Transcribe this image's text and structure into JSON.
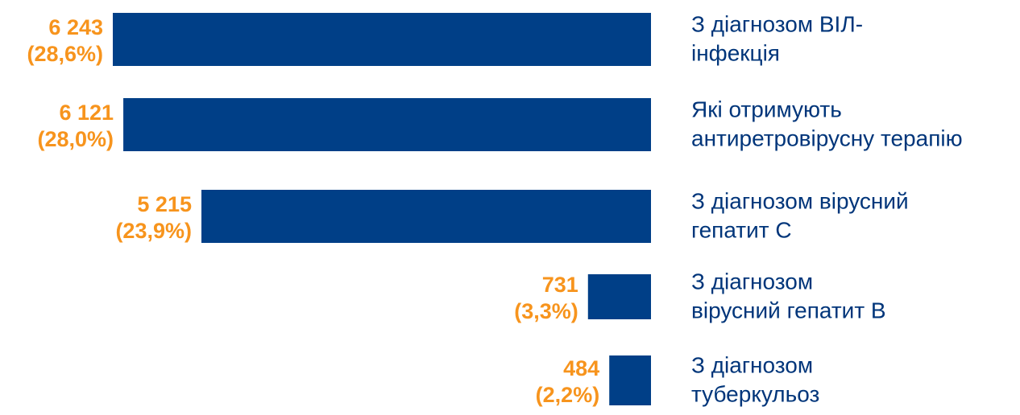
{
  "chart_data": {
    "type": "bar",
    "orientation": "horizontal",
    "color": "#003f87",
    "categories": [
      [
        "З діагнозом ВІЛ-",
        "інфекція"
      ],
      [
        "Які отримують",
        "антиретровірусну терапію"
      ],
      [
        "З діагнозом вірусний",
        "гепатит С"
      ],
      [
        "З діагнозом",
        "вірусний гепатит В"
      ],
      [
        "З діагнозом",
        "туберкульоз"
      ]
    ],
    "values": [
      6243,
      6121,
      5215,
      731,
      484
    ],
    "value_labels": [
      "6 243",
      "6 121",
      "5 215",
      "731",
      "484"
    ],
    "shares": [
      28.6,
      28.0,
      23.9,
      3.3,
      2.2
    ],
    "share_labels": [
      "(28,6%)",
      "(28,0%)",
      "(23,9%)",
      "(3,3%)",
      "(2,2%)"
    ]
  }
}
